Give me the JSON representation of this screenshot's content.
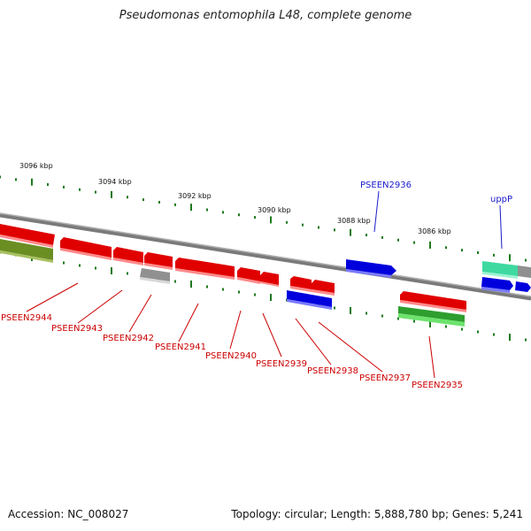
{
  "title": "Pseudomonas entomophila L48, complete genome",
  "footer": {
    "accession": "Accession: NC_008027",
    "summary": "Topology: circular; Length: 5,888,780 bp; Genes: 5,241"
  },
  "scale_labels": [
    "3096 kbp",
    "3094 kbp",
    "3092 kbp",
    "3090 kbp",
    "3088 kbp",
    "3086 kbp"
  ],
  "gene_labels": [
    {
      "name": "PSEEN2936",
      "color": "#1a1acc"
    },
    {
      "name": "uppP",
      "color": "#1a1acc"
    },
    {
      "name": "PSEEN2944",
      "color": "#cc0000"
    },
    {
      "name": "PSEEN2943",
      "color": "#cc0000"
    },
    {
      "name": "PSEEN2942",
      "color": "#cc0000"
    },
    {
      "name": "PSEEN2941",
      "color": "#cc0000"
    },
    {
      "name": "PSEEN2940",
      "color": "#cc0000"
    },
    {
      "name": "PSEEN2939",
      "color": "#cc0000"
    },
    {
      "name": "PSEEN2938",
      "color": "#cc0000"
    },
    {
      "name": "PSEEN2937",
      "color": "#cc0000"
    },
    {
      "name": "PSEEN2935",
      "color": "#cc0000"
    }
  ],
  "colors": {
    "backbone": "#808080",
    "tick": "#1e7a1e",
    "red_gene": "#e00000",
    "blue_gene": "#0000dd",
    "olive_gene": "#6b8e23",
    "green_gene": "#2e9e2e",
    "teal_gene": "#3ed9a0",
    "grey_gene": "#b8b8b8"
  }
}
